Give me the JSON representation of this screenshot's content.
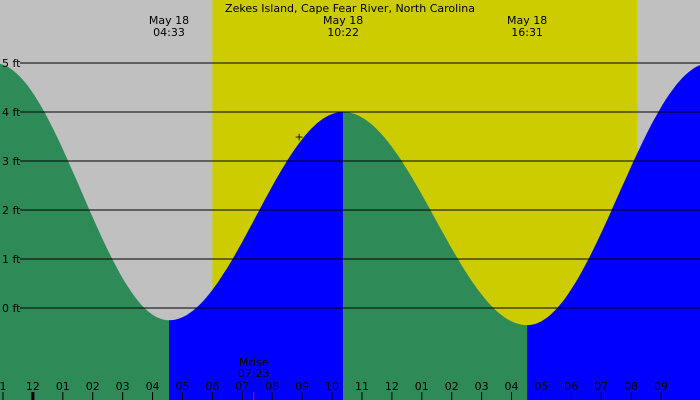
{
  "chart_data": {
    "type": "area",
    "title": "Zekes Island, Cape Fear River, North Carolina",
    "y_unit": "ft",
    "ylim": [
      -1.1,
      5.1
    ],
    "yticks": [
      {
        "value": 0,
        "label": "0 ft"
      },
      {
        "value": 1,
        "label": "1 ft"
      },
      {
        "value": 2,
        "label": "2 ft"
      },
      {
        "value": 3,
        "label": "3 ft"
      },
      {
        "value": 4,
        "label": "4 ft"
      },
      {
        "value": 5,
        "label": "5 ft"
      }
    ],
    "x_range_hours": [
      -1.1,
      22.3
    ],
    "xticks": [
      "1",
      "12",
      "01",
      "02",
      "03",
      "04",
      "05",
      "06",
      "07",
      "08",
      "09",
      "10",
      "11",
      "12",
      "01",
      "02",
      "03",
      "04",
      "05",
      "06",
      "07",
      "08",
      "09"
    ],
    "day_period": {
      "start_hour": 6.0,
      "end_hour": 20.2
    },
    "tide_points": [
      {
        "hour": -1.3,
        "height": 5.0
      },
      {
        "hour": 4.55,
        "height": -0.25
      },
      {
        "hour": 10.37,
        "height": 4.0
      },
      {
        "hour": 16.52,
        "height": -0.35
      },
      {
        "hour": 22.65,
        "height": 5.0
      }
    ],
    "extrema_labels": [
      {
        "date": "May 18",
        "time": "04:33",
        "hour": 4.55
      },
      {
        "date": "May 18",
        "time": "10:22",
        "hour": 10.37
      },
      {
        "date": "May 18",
        "time": "16:31",
        "hour": 16.52
      }
    ],
    "moon_event": {
      "label": "Mrise",
      "time": "07:23",
      "hour": 7.38
    },
    "current_marker": {
      "hour": 8.9,
      "height": 3.5
    },
    "colors": {
      "background": "#c0c0c0",
      "daylight": "#cccc00",
      "falling": "#2e8b57",
      "rising": "#0000ff",
      "gridline": "#000000"
    }
  }
}
